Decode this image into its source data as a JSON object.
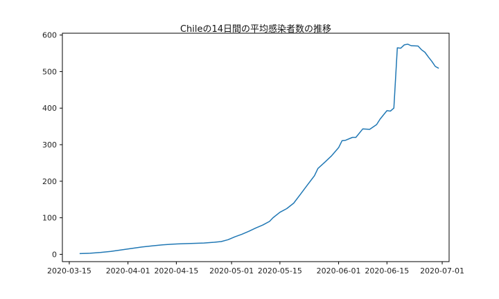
{
  "chart_data": {
    "type": "line",
    "title": "Chileの14日間の平均感染者数の推移",
    "xlabel": "",
    "ylabel": "",
    "grid": false,
    "xlim": [
      "2020-03-13",
      "2020-07-03"
    ],
    "ylim": [
      -20,
      605
    ],
    "x_ticks": [
      "2020-03-15",
      "2020-04-01",
      "2020-04-15",
      "2020-05-01",
      "2020-05-15",
      "2020-06-01",
      "2020-06-15",
      "2020-07-01"
    ],
    "y_ticks": [
      0,
      100,
      200,
      300,
      400,
      500,
      600
    ],
    "series": [
      {
        "name": "",
        "color": "#1f77b4",
        "points": [
          [
            "2020-03-18",
            2
          ],
          [
            "2020-03-21",
            3
          ],
          [
            "2020-03-24",
            5
          ],
          [
            "2020-03-27",
            8
          ],
          [
            "2020-03-30",
            12
          ],
          [
            "2020-04-02",
            16
          ],
          [
            "2020-04-05",
            20
          ],
          [
            "2020-04-08",
            23
          ],
          [
            "2020-04-11",
            26
          ],
          [
            "2020-04-14",
            28
          ],
          [
            "2020-04-17",
            29
          ],
          [
            "2020-04-20",
            30
          ],
          [
            "2020-04-23",
            31
          ],
          [
            "2020-04-26",
            33
          ],
          [
            "2020-04-28",
            35
          ],
          [
            "2020-04-30",
            40
          ],
          [
            "2020-05-02",
            48
          ],
          [
            "2020-05-04",
            55
          ],
          [
            "2020-05-06",
            63
          ],
          [
            "2020-05-08",
            72
          ],
          [
            "2020-05-10",
            80
          ],
          [
            "2020-05-12",
            90
          ],
          [
            "2020-05-13",
            100
          ],
          [
            "2020-05-15",
            115
          ],
          [
            "2020-05-17",
            125
          ],
          [
            "2020-05-19",
            140
          ],
          [
            "2020-05-21",
            165
          ],
          [
            "2020-05-23",
            190
          ],
          [
            "2020-05-25",
            215
          ],
          [
            "2020-05-26",
            235
          ],
          [
            "2020-05-28",
            252
          ],
          [
            "2020-05-30",
            270
          ],
          [
            "2020-06-01",
            292
          ],
          [
            "2020-06-02",
            311
          ],
          [
            "2020-06-03",
            312
          ],
          [
            "2020-06-05",
            320
          ],
          [
            "2020-06-06",
            320
          ],
          [
            "2020-06-08",
            343
          ],
          [
            "2020-06-10",
            342
          ],
          [
            "2020-06-12",
            355
          ],
          [
            "2020-06-13",
            370
          ],
          [
            "2020-06-15",
            393
          ],
          [
            "2020-06-16",
            392
          ],
          [
            "2020-06-17",
            400
          ],
          [
            "2020-06-18",
            565
          ],
          [
            "2020-06-19",
            564
          ],
          [
            "2020-06-20",
            573
          ],
          [
            "2020-06-21",
            575
          ],
          [
            "2020-06-22",
            571
          ],
          [
            "2020-06-24",
            570
          ],
          [
            "2020-06-25",
            560
          ],
          [
            "2020-06-26",
            553
          ],
          [
            "2020-06-27",
            540
          ],
          [
            "2020-06-28",
            528
          ],
          [
            "2020-06-29",
            514
          ],
          [
            "2020-06-30",
            509
          ]
        ]
      }
    ]
  }
}
